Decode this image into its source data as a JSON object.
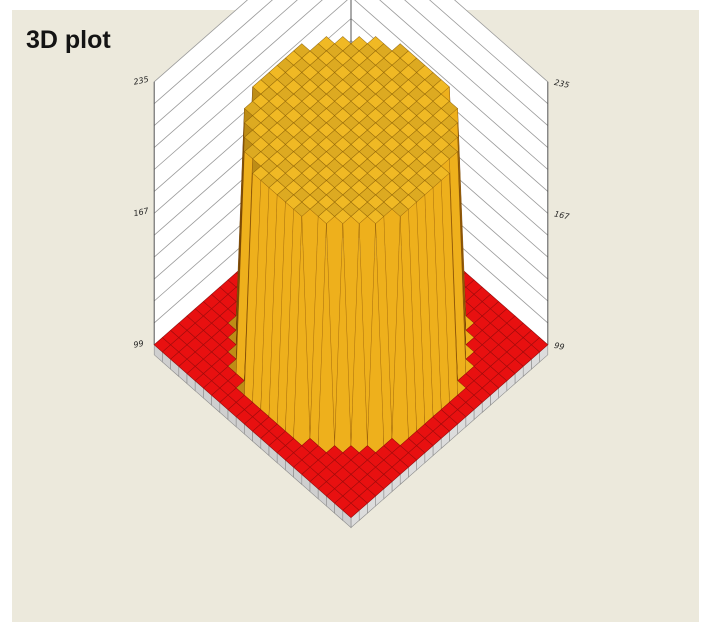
{
  "chart_data": {
    "type": "surface3d",
    "title": "3D plot",
    "z_ticks": [
      "99",
      "167",
      "235"
    ],
    "zlim": [
      99,
      235
    ],
    "grid": "on",
    "grid_size": 24,
    "shape": "cylinder",
    "base_value": 99,
    "plateau_value": 210,
    "spike_value": 235,
    "spikes": [
      {
        "x": 11.5,
        "y": 0
      },
      {
        "x": 0,
        "y": 11.5
      },
      {
        "x": 4.5,
        "y": 1.5
      },
      {
        "x": 1.5,
        "y": 4.5
      },
      {
        "x": 18.5,
        "y": 1.5
      },
      {
        "x": 1.5,
        "y": 18.5
      }
    ],
    "colors": {
      "base": "#e81010",
      "low": "#e4170e",
      "mid": "#ea6a12",
      "high": "#f2c21b",
      "top": "#f0c838",
      "background": "#ece9dc",
      "edge": "#c8c8c8"
    }
  }
}
